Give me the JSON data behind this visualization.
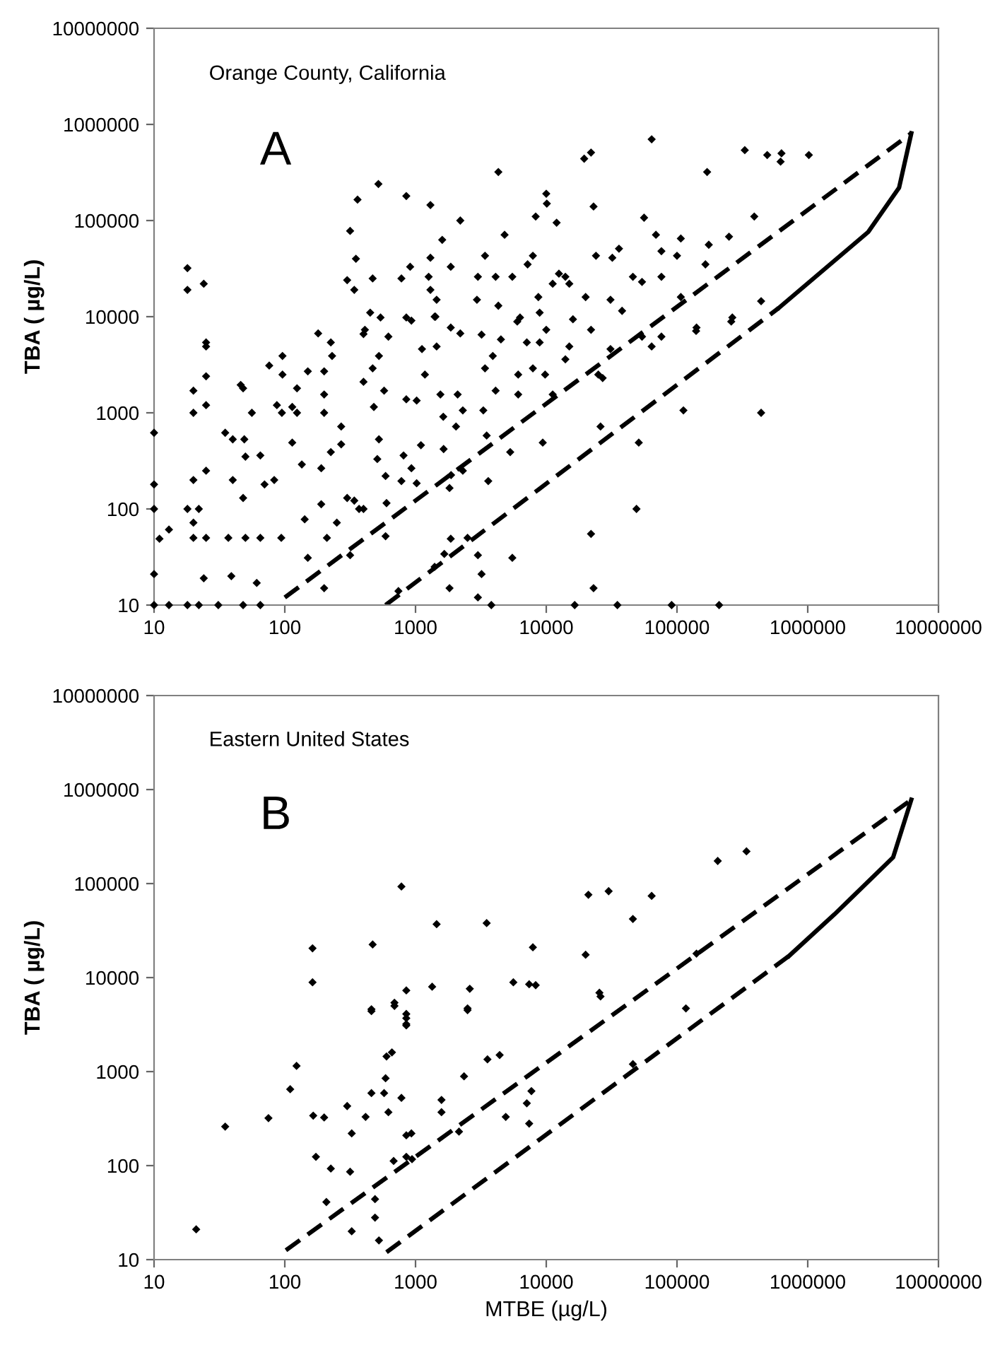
{
  "chart_data": [
    {
      "type": "scatter",
      "annotations": [
        "Orange County, California",
        "A"
      ],
      "ylabel": "TBA ( µg/L)",
      "log": "xy",
      "grid": false,
      "marker": "diamond",
      "xlim": [
        10,
        10000000
      ],
      "xticks": [
        10,
        100,
        1000,
        10000,
        100000,
        1000000,
        10000000
      ],
      "ylim": [
        10,
        10000000
      ],
      "yticks": [
        10,
        100,
        1000,
        10000,
        100000,
        1000000,
        10000000
      ],
      "series": [
        {
          "color": "#000000",
          "x": [
            18,
            18,
            24,
            25,
            360,
            520,
            316,
            350,
            300,
            340,
            470,
            450,
            540,
            400,
            780,
            850,
            910,
            850,
            1300,
            1300,
            1260,
            1300,
            1450,
            1400,
            1420,
            1600,
            2200,
            1860,
            2200,
            3000,
            2950,
            3400,
            3200,
            4300,
            4100,
            4800,
            4300,
            5500,
            6000,
            7200,
            7900,
            8300,
            8700,
            8900,
            10000,
            10100,
            12000,
            11200,
            12500,
            14000,
            15000,
            16000,
            20000,
            19500,
            22000,
            23000,
            24000,
            31000,
            32000,
            36000,
            38000,
            46000,
            54000,
            56000,
            64000,
            69000,
            76000,
            76000,
            100000,
            107000,
            107000,
            170000,
            175000,
            165000,
            250000,
            260000,
            330000,
            390000,
            440000,
            490000,
            620000,
            630000,
            1020000,
            140000,
            25,
            25,
            25,
            20,
            20,
            20,
            18,
            22,
            20,
            20,
            25,
            25,
            24,
            13,
            11,
            10,
            10,
            10,
            10,
            10,
            13,
            18,
            22,
            31,
            48,
            65,
            35,
            40,
            46,
            48,
            49,
            50,
            40,
            48,
            56,
            65,
            70,
            83,
            61,
            39,
            37,
            50,
            65,
            94,
            76,
            96,
            96,
            87,
            95,
            114,
            124,
            124,
            114,
            135,
            142,
            150,
            150,
            180,
            200,
            200,
            200,
            225,
            190,
            190,
            210,
            200,
            250,
            225,
            230,
            270,
            270,
            300,
            316,
            340,
            370,
            400,
            410,
            400,
            480,
            525,
            470,
            525,
            510,
            590,
            620,
            575,
            590,
            600,
            780,
            850,
            810,
            930,
            1020,
            1100,
            1180,
            1020,
            1120,
            930,
            740,
            1400,
            1450,
            1550,
            1630,
            1640,
            1820,
            2040,
            2100,
            2300,
            1860,
            1870,
            2300,
            1860,
            1820,
            1660,
            2500,
            3000,
            3200,
            3000,
            3300,
            3400,
            3900,
            3500,
            3600,
            3800,
            4100,
            4500,
            5300,
            5500,
            6100,
            6100,
            6300,
            7100,
            7900,
            8900,
            9800,
            9400,
            10000,
            11200,
            14000,
            15000,
            16500,
            22000,
            22000,
            23000,
            25000,
            27000,
            31000,
            26000,
            35000,
            54000,
            51000,
            49000,
            64000,
            76000,
            91000,
            112000,
            141000,
            210000,
            265000,
            440000
          ],
          "values": [
            32000,
            19000,
            22000,
            4900,
            165000,
            240000,
            78000,
            40000,
            24000,
            19000,
            25000,
            11000,
            9800,
            6600,
            25000,
            9800,
            33000,
            180000,
            145000,
            41000,
            26000,
            19000,
            15000,
            10000,
            10000,
            63000,
            100000,
            33000,
            6700,
            26000,
            15000,
            43000,
            6500,
            320000,
            26000,
            71000,
            13000,
            26000,
            8900,
            35000,
            43000,
            110000,
            16000,
            11000,
            190000,
            150000,
            95000,
            22000,
            28000,
            26000,
            22000,
            9400,
            16000,
            440000,
            510000,
            140000,
            43000,
            15000,
            41000,
            51000,
            11500,
            26000,
            23000,
            107000,
            700000,
            71000,
            48000,
            26000,
            43000,
            65000,
            16000,
            320000,
            56000,
            35000,
            68000,
            8900,
            540000,
            110000,
            14500,
            480000,
            410000,
            500000,
            480000,
            7100,
            5400,
            2400,
            1200,
            1000,
            1700,
            200,
            100,
            100,
            72,
            50,
            250,
            50,
            19,
            61,
            49,
            620,
            180,
            100,
            21,
            10,
            10,
            10,
            10,
            10,
            10,
            10,
            620,
            530,
            1950,
            1800,
            530,
            350,
            200,
            130,
            1000,
            360,
            180,
            200,
            17,
            20,
            50,
            50,
            50,
            50,
            3100,
            3900,
            2500,
            1200,
            1000,
            1150,
            1000,
            1800,
            490,
            290,
            78,
            31,
            2700,
            6700,
            2700,
            1550,
            1000,
            390,
            265,
            112,
            50,
            15,
            72,
            5400,
            3900,
            720,
            470,
            130,
            33,
            122,
            100,
            100,
            7300,
            2100,
            1150,
            3900,
            2900,
            530,
            330,
            220,
            6200,
            1700,
            52,
            115,
            195,
            1380,
            360,
            265,
            185,
            460,
            2500,
            1340,
            4600,
            9100,
            14,
            25,
            4900,
            1550,
            910,
            420,
            165,
            720,
            1550,
            1060,
            7700,
            225,
            250,
            49,
            15,
            34,
            50,
            12,
            21,
            33,
            1060,
            2900,
            3900,
            580,
            195,
            10,
            1700,
            5800,
            390,
            31,
            2500,
            1550,
            9800,
            5400,
            2900,
            5400,
            2500,
            490,
            7300,
            1550,
            3600,
            4900,
            10,
            7300,
            55,
            15,
            2500,
            2300,
            4600,
            720,
            10,
            6200,
            490,
            100,
            4900,
            6200,
            10,
            1060,
            7700,
            10,
            9800,
            1000
          ]
        },
        {
          "type": "line",
          "color": "#000000",
          "line_style": "dashed",
          "marker": "none",
          "x": [
            100,
            6200000
          ],
          "values": [
            12,
            810000
          ]
        },
        {
          "type": "line",
          "color": "#000000",
          "line_style": "dashed",
          "marker": "none",
          "x": [
            590,
            600000
          ],
          "values": [
            10,
            12300
          ]
        },
        {
          "type": "line",
          "color": "#000000",
          "line_style": "solid",
          "marker": "none",
          "x": [
            600000,
            2900000,
            5000000,
            6200000
          ],
          "values": [
            12300,
            76000,
            220000,
            810000
          ]
        }
      ]
    },
    {
      "type": "scatter",
      "annotations": [
        "Eastern United States",
        "B"
      ],
      "xlabel": "MTBE (µg/L)",
      "ylabel": "TBA ( µg/L)",
      "log": "xy",
      "grid": false,
      "marker": "diamond",
      "xlim": [
        10,
        10000000
      ],
      "xticks": [
        10,
        100,
        1000,
        10000,
        100000,
        1000000,
        10000000
      ],
      "ylim": [
        10,
        10000000
      ],
      "yticks": [
        10,
        100,
        1000,
        10000,
        100000,
        1000000,
        10000000
      ],
      "series": [
        {
          "color": "#000000",
          "x": [
            780,
            1450,
            3500,
            7900,
            163,
            163,
            470,
            460,
            690,
            850,
            850,
            850,
            1340,
            2600,
            2500,
            5600,
            7400,
            8300,
            20000,
            21000,
            30000,
            25500,
            46000,
            64000,
            117000,
            141000,
            205000,
            340000,
            21,
            35,
            75,
            123,
            110,
            165,
            200,
            173,
            225,
            208,
            300,
            325,
            316,
            325,
            415,
            460,
            460,
            490,
            490,
            525,
            575,
            590,
            600,
            660,
            620,
            690,
            780,
            850,
            850,
            680,
            850,
            930,
            850,
            940,
            1580,
            1580,
            2350,
            2500,
            2150,
            3550,
            4400,
            4900,
            7100,
            7700,
            7400,
            26000,
            46000
          ],
          "values": [
            93000,
            37000,
            38000,
            21000,
            20500,
            8900,
            22500,
            4600,
            5400,
            7300,
            4100,
            3200,
            8000,
            7600,
            4700,
            8900,
            8500,
            8300,
            17500,
            76000,
            83000,
            6900,
            42000,
            74000,
            4700,
            18000,
            174000,
            220000,
            21,
            260,
            320,
            1150,
            650,
            340,
            325,
            124,
            93,
            41,
            430,
            220,
            86,
            20,
            330,
            590,
            4400,
            44,
            28,
            16,
            590,
            850,
            1450,
            1600,
            370,
            5000,
            525,
            3700,
            3100,
            112,
            210,
            220,
            124,
            117,
            500,
            370,
            890,
            4500,
            230,
            1350,
            1500,
            330,
            460,
            620,
            280,
            6300,
            1200
          ]
        },
        {
          "type": "line",
          "color": "#000000",
          "line_style": "dashed",
          "marker": "none",
          "x": [
            102,
            6200000
          ],
          "values": [
            12.6,
            780000
          ]
        },
        {
          "type": "line",
          "color": "#000000",
          "line_style": "dashed",
          "marker": "none",
          "x": [
            600,
            720000
          ],
          "values": [
            12,
            17000
          ]
        },
        {
          "type": "line",
          "color": "#000000",
          "line_style": "solid",
          "marker": "none",
          "x": [
            720000,
            1600000,
            4500000,
            6200000
          ],
          "values": [
            17000,
            47000,
            190000,
            780000
          ]
        }
      ]
    }
  ]
}
